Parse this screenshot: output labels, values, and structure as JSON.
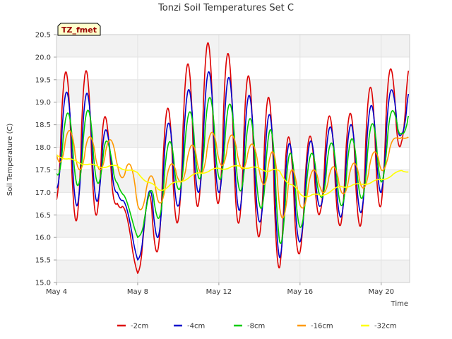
{
  "chart_data": {
    "type": "line",
    "title": "Tonzi Soil Temperatures Set C",
    "xlabel": "Time",
    "ylabel": "Soil Temperature (C)",
    "badge": "TZ_fmet",
    "xlim": [
      0,
      17.4
    ],
    "ylim": [
      15.0,
      20.5
    ],
    "x_ticks": [
      {
        "value": 0,
        "label": "May 4"
      },
      {
        "value": 4,
        "label": "May 8"
      },
      {
        "value": 8,
        "label": "May 12"
      },
      {
        "value": 12,
        "label": "May 16"
      },
      {
        "value": 16,
        "label": "May 20"
      }
    ],
    "y_ticks": [
      15.0,
      15.5,
      16.0,
      16.5,
      17.0,
      17.5,
      18.0,
      18.5,
      19.0,
      19.5,
      20.0,
      20.5
    ],
    "grid": true,
    "legend_position": "bottom",
    "days": [
      "May 4",
      "May 5",
      "May 6",
      "May 7",
      "May 8",
      "May 9",
      "May 10",
      "May 11",
      "May 12",
      "May 13",
      "May 14",
      "May 15",
      "May 16",
      "May 17",
      "May 18",
      "May 19",
      "May 20",
      "May 21"
    ],
    "series": [
      {
        "name": "-2cm",
        "color": "#dd0000",
        "daily_max": [
          19.65,
          19.7,
          19.7,
          17.3,
          15.5,
          18.3,
          19.5,
          20.25,
          20.4,
          19.7,
          19.45,
          18.7,
          17.65,
          18.9,
          18.45,
          19.1,
          19.6,
          19.9
        ],
        "daily_min": [
          16.8,
          16.35,
          16.5,
          16.75,
          15.2,
          15.7,
          16.35,
          16.7,
          16.75,
          16.3,
          16.0,
          15.3,
          15.65,
          16.55,
          16.25,
          16.25,
          16.7,
          18.1
        ]
      },
      {
        "name": "-4cm",
        "color": "#0000cc",
        "daily_max": [
          19.25,
          19.2,
          19.2,
          17.45,
          15.7,
          18.1,
          18.95,
          19.6,
          19.75,
          19.35,
          18.95,
          18.5,
          17.65,
          18.6,
          18.3,
          18.7,
          19.15,
          19.4
        ],
        "daily_min": [
          17.1,
          16.7,
          16.8,
          17.0,
          15.5,
          16.0,
          16.7,
          17.0,
          17.0,
          16.6,
          16.35,
          15.55,
          15.9,
          16.7,
          16.45,
          16.55,
          17.0,
          18.3
        ]
      },
      {
        "name": "-8cm",
        "color": "#00cc00",
        "daily_max": [
          18.65,
          18.85,
          18.8,
          17.5,
          16.0,
          17.7,
          18.45,
          19.05,
          19.15,
          18.8,
          18.5,
          18.3,
          17.5,
          18.15,
          18.05,
          18.3,
          18.7,
          18.9
        ],
        "daily_min": [
          17.4,
          17.15,
          17.2,
          17.2,
          16.0,
          16.4,
          17.05,
          17.3,
          17.3,
          17.05,
          16.7,
          15.85,
          16.2,
          16.9,
          16.7,
          16.85,
          17.2,
          18.3
        ]
      },
      {
        "name": "-16cm",
        "color": "#ff9900",
        "daily_max": [
          18.5,
          18.3,
          18.2,
          18.15,
          17.3,
          17.4,
          17.75,
          18.2,
          18.4,
          18.2,
          18.0,
          17.85,
          17.3,
          17.6,
          17.55,
          17.7,
          18.0,
          18.3
        ],
        "daily_min": [
          17.7,
          17.5,
          17.5,
          17.5,
          16.6,
          16.7,
          17.2,
          17.4,
          17.6,
          17.55,
          17.35,
          16.4,
          16.6,
          17.0,
          16.95,
          17.05,
          17.4,
          18.2
        ]
      },
      {
        "name": "-32cm",
        "color": "#ffff00",
        "daily_max": [
          17.85,
          17.7,
          17.6,
          17.6,
          17.45,
          17.1,
          17.25,
          17.45,
          17.55,
          17.6,
          17.55,
          17.5,
          17.0,
          16.95,
          17.15,
          17.2,
          17.3,
          17.5
        ],
        "daily_min": [
          17.8,
          17.65,
          17.55,
          17.55,
          17.4,
          17.0,
          17.2,
          17.4,
          17.5,
          17.55,
          17.5,
          17.4,
          16.9,
          16.9,
          17.1,
          17.15,
          17.25,
          17.45
        ]
      }
    ]
  }
}
